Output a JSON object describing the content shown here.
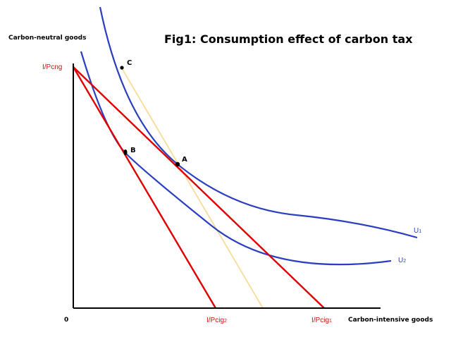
{
  "title": "Fig1: Consumption effect of carbon tax",
  "axes": {
    "y_label": "Carbon-neutral goods",
    "x_label": "Carbon-intensive goods",
    "origin_label": "0"
  },
  "budget_labels": {
    "y_intercept": "I/Pcng",
    "x_intercept_after_tax": {
      "main": "I/Pcig",
      "sub": "2"
    },
    "x_intercept_before_tax": {
      "main": "I/Pcig",
      "sub": "1"
    }
  },
  "curves": {
    "u1": {
      "main": "U",
      "sub": "1"
    },
    "u2": {
      "main": "U",
      "sub": "2"
    }
  },
  "points": {
    "a": "A",
    "b": "B",
    "c": "C"
  },
  "colors": {
    "axis": "#000000",
    "budget": "#e00000",
    "indifference": "#2a3fbf",
    "compensated": "#f6dfa0",
    "label_red": "#d01010",
    "label_blue": "#2a3fbf"
  }
}
